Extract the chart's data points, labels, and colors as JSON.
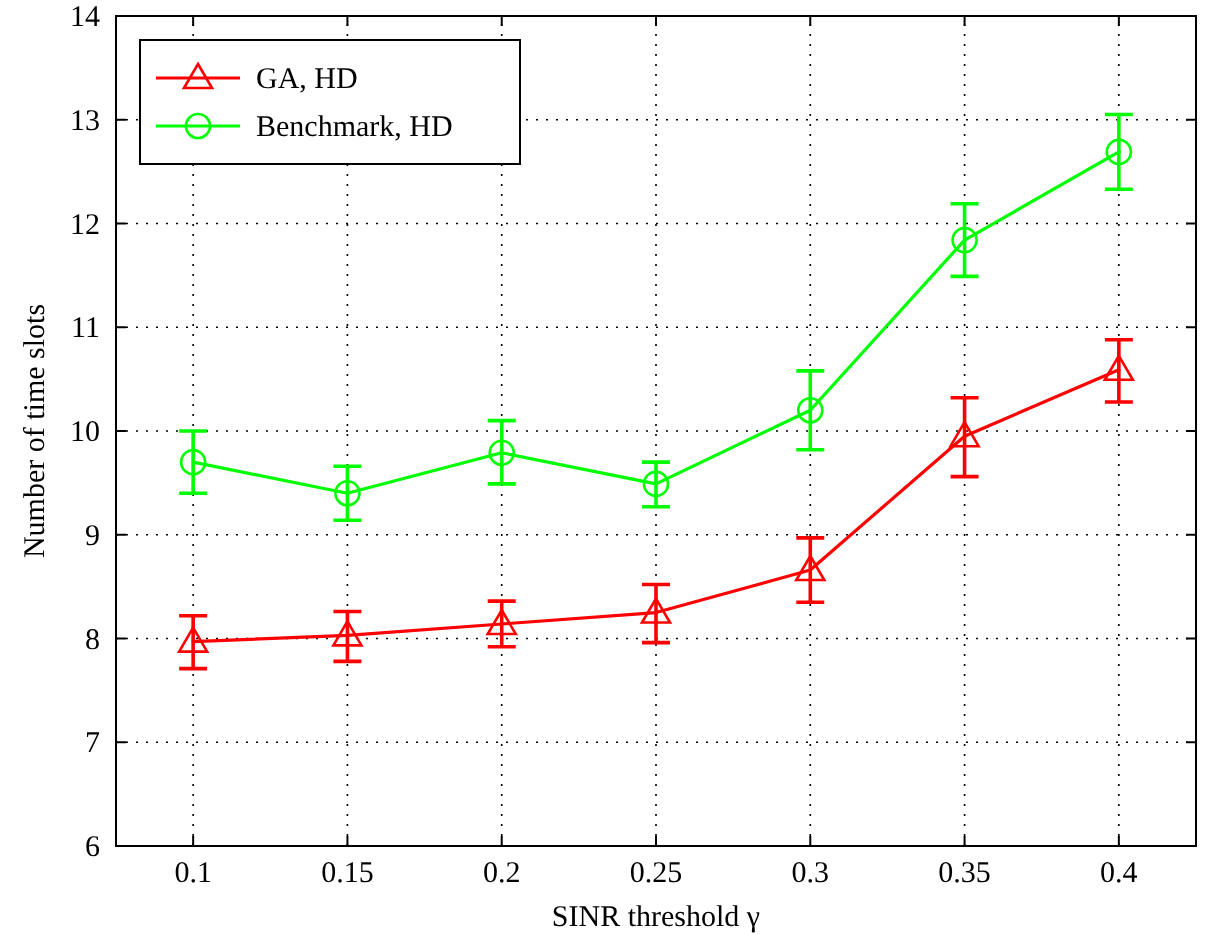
{
  "chart_data": {
    "type": "line",
    "xlabel": "SINR threshold γ",
    "ylabel": "Number of time slots",
    "x": [
      0.1,
      0.15,
      0.2,
      0.25,
      0.3,
      0.35,
      0.4
    ],
    "xlim": [
      0.075,
      0.425
    ],
    "xticks": [
      0.1,
      0.15,
      0.2,
      0.25,
      0.3,
      0.35,
      0.4
    ],
    "ylim": [
      6,
      14
    ],
    "yticks": [
      6,
      7,
      8,
      9,
      10,
      11,
      12,
      13,
      14
    ],
    "grid": true,
    "legend": "top left",
    "line_style": "solid",
    "series": [
      {
        "name": "GA, HD",
        "color": "#ff0000",
        "marker": "triangle",
        "values": [
          7.97,
          8.03,
          8.14,
          8.25,
          8.66,
          9.95,
          10.59
        ],
        "errors": [
          [
            7.71,
            8.22
          ],
          [
            7.78,
            8.26
          ],
          [
            7.92,
            8.36
          ],
          [
            7.96,
            8.52
          ],
          [
            8.35,
            8.97
          ],
          [
            9.56,
            10.32
          ],
          [
            10.28,
            10.88
          ]
        ]
      },
      {
        "name": "Benchmark, HD",
        "color": "#00ff00",
        "marker": "circle",
        "values": [
          9.7,
          9.4,
          9.79,
          9.49,
          10.2,
          11.84,
          12.69
        ],
        "errors": [
          [
            9.4,
            10.0
          ],
          [
            9.14,
            9.66
          ],
          [
            9.49,
            10.1
          ],
          [
            9.27,
            9.7
          ],
          [
            9.82,
            10.58
          ],
          [
            11.49,
            12.19
          ],
          [
            12.33,
            13.05
          ]
        ]
      }
    ]
  }
}
